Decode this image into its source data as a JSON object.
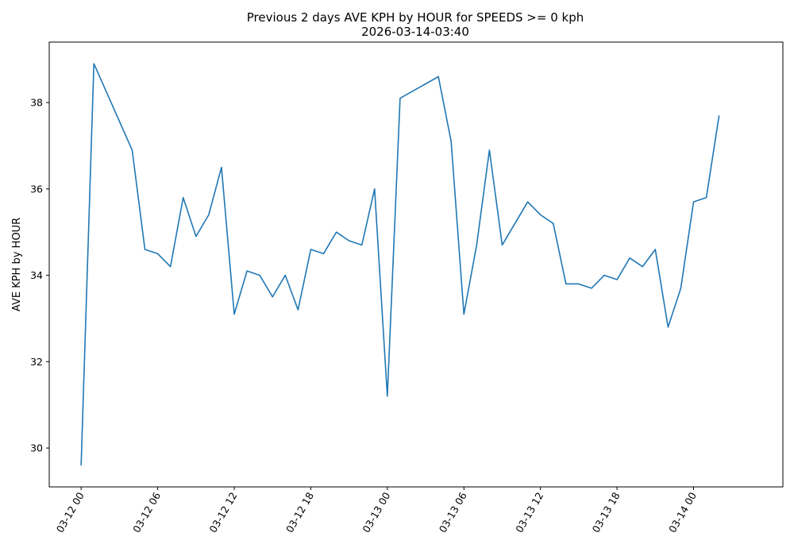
{
  "chart_data": {
    "type": "line",
    "title": "Previous 2 days AVE KPH by HOUR for SPEEDS >= 0 kph",
    "subtitle": "2026-03-14-03:40",
    "xlabel": "",
    "ylabel": "AVE KPH by HOUR",
    "ylim": [
      29.1,
      39.4
    ],
    "xlim": [
      "2026-03-11 21:30",
      "2026-03-14 07:00"
    ],
    "y_ticks": [
      30,
      32,
      34,
      36,
      38
    ],
    "x_ticks": [
      "03-12 00",
      "03-12 06",
      "03-12 12",
      "03-12 18",
      "03-13 00",
      "03-13 06",
      "03-13 12",
      "03-13 18",
      "03-14 00"
    ],
    "grid": false,
    "color": "#1f77b4",
    "series": [
      {
        "x": [
          "2026-03-12 00:00",
          "2026-03-12 01:00",
          "2026-03-12 04:00",
          "2026-03-12 05:00",
          "2026-03-12 06:00",
          "2026-03-12 07:00",
          "2026-03-12 08:00",
          "2026-03-12 09:00",
          "2026-03-12 10:00",
          "2026-03-12 11:00",
          "2026-03-12 12:00",
          "2026-03-12 13:00",
          "2026-03-12 14:00",
          "2026-03-12 15:00",
          "2026-03-12 16:00",
          "2026-03-12 17:00",
          "2026-03-12 18:00",
          "2026-03-12 19:00",
          "2026-03-12 20:00",
          "2026-03-12 21:00",
          "2026-03-12 22:00",
          "2026-03-12 23:00",
          "2026-03-13 00:00",
          "2026-03-13 01:00",
          "2026-03-13 04:00",
          "2026-03-13 05:00",
          "2026-03-13 06:00",
          "2026-03-13 07:00",
          "2026-03-13 08:00",
          "2026-03-13 09:00",
          "2026-03-13 11:00",
          "2026-03-13 12:00",
          "2026-03-13 13:00",
          "2026-03-13 14:00",
          "2026-03-13 15:00",
          "2026-03-13 16:00",
          "2026-03-13 17:00",
          "2026-03-13 18:00",
          "2026-03-13 19:00",
          "2026-03-13 20:00",
          "2026-03-13 21:00",
          "2026-03-13 22:00",
          "2026-03-13 23:00",
          "2026-03-14 00:00",
          "2026-03-14 01:00",
          "2026-03-14 02:00"
        ],
        "values": [
          29.6,
          38.9,
          36.9,
          34.6,
          34.5,
          34.2,
          35.8,
          34.9,
          35.4,
          36.5,
          33.1,
          34.1,
          34.0,
          33.5,
          34.0,
          33.2,
          34.6,
          34.5,
          35.0,
          34.8,
          34.7,
          36.0,
          31.2,
          38.1,
          38.6,
          37.1,
          33.1,
          34.7,
          36.9,
          34.7,
          35.7,
          35.4,
          35.2,
          33.8,
          33.8,
          33.7,
          34.0,
          33.9,
          34.4,
          34.2,
          34.6,
          32.8,
          33.7,
          35.7,
          35.8,
          37.7
        ]
      }
    ]
  }
}
